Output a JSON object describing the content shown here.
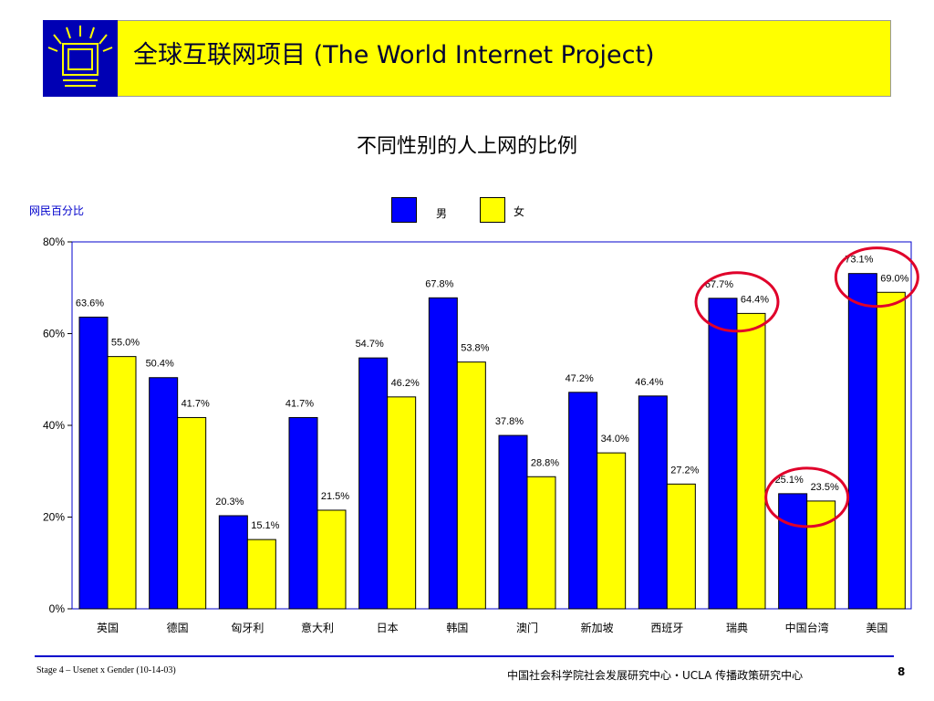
{
  "header": {
    "title": "全球互联网项目 (The World Internet Project)"
  },
  "chart_data": {
    "type": "bar",
    "title": "不同性别的人上网的比例",
    "ylabel": "网民百分比",
    "ylim": [
      0,
      80
    ],
    "yticks": [
      "0%",
      "20%",
      "40%",
      "60%",
      "80%"
    ],
    "categories": [
      "英国",
      "德国",
      "匈牙利",
      "意大利",
      "日本",
      "韩国",
      "澳门",
      "新加坡",
      "西班牙",
      "瑞典",
      "中国台湾",
      "美国"
    ],
    "series": [
      {
        "name": "男",
        "color": "#0000ff",
        "values": [
          63.6,
          50.4,
          20.3,
          41.7,
          54.7,
          67.8,
          37.8,
          47.2,
          46.4,
          67.7,
          25.1,
          73.1
        ],
        "labels": [
          "63.6%",
          "50.4%",
          "20.3%",
          "41.7%",
          "54.7%",
          "67.8%",
          "37.8%",
          "47.2%",
          "46.4%",
          "67.7%",
          "25.1%",
          "73.1%"
        ]
      },
      {
        "name": "女",
        "color": "#ffff00",
        "values": [
          55.0,
          41.7,
          15.1,
          21.5,
          46.2,
          53.8,
          28.8,
          34.0,
          27.2,
          64.4,
          23.5,
          69.0
        ],
        "labels": [
          "55.0%",
          "41.7%",
          "15.1%",
          "21.5%",
          "46.2%",
          "53.8%",
          "28.8%",
          "34.0%",
          "27.2%",
          "64.4%",
          "23.5%",
          "69.0%"
        ]
      }
    ],
    "highlighted_categories": [
      "瑞典",
      "中国台湾",
      "美国"
    ],
    "legend_position": "top-center",
    "grid": false
  },
  "footer": {
    "left": "Stage 4 – Usenet x Gender (10-14-03)",
    "right": "中国社会科学院社会发展研究中心・UCLA 传播政策研究中心",
    "page": "8"
  }
}
